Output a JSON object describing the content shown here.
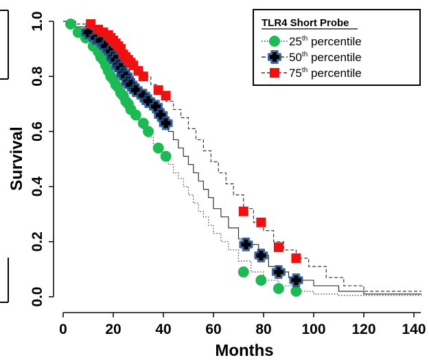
{
  "chart_data": {
    "type": "line",
    "title": "",
    "xlabel": "Months",
    "ylabel": "Survival",
    "xlim": [
      0,
      145
    ],
    "ylim": [
      0,
      1.0
    ],
    "x_ticks": [
      "0",
      "20",
      "40",
      "60",
      "80",
      "100",
      "120",
      "140"
    ],
    "y_ticks": [
      "0.0",
      "0.2",
      "0.4",
      "0.6",
      "0.8",
      "1.0"
    ],
    "grid": false,
    "legend": {
      "title": "TLR4 Short Probe",
      "placement": "top-right",
      "entries": [
        {
          "prefix": "25",
          "sup": "th",
          "suffix": " percentile",
          "color": "#1db954",
          "marker": "circle",
          "line": "dotted"
        },
        {
          "prefix": "50",
          "sup": "th",
          "suffix": " percentile",
          "color": "#000000",
          "marker": "cross",
          "line": "solid"
        },
        {
          "prefix": "75",
          "sup": "th",
          "suffix": " percentile",
          "color": "#ee1111",
          "marker": "square",
          "line": "dashed"
        }
      ]
    },
    "series": [
      {
        "color": "#1db954",
        "marker": "circle",
        "line": "dotted",
        "x": [
          0,
          3,
          5,
          7,
          8,
          9,
          11,
          13,
          14,
          15,
          16,
          17,
          18,
          19,
          20,
          21,
          22,
          23,
          24,
          25,
          26,
          27,
          28,
          30,
          32,
          34,
          36,
          38,
          40,
          42,
          44,
          46,
          48,
          50,
          52,
          54,
          56,
          58,
          60,
          63,
          66,
          70,
          75,
          80,
          86,
          93,
          100,
          110,
          120,
          130,
          143
        ],
        "y": [
          1.0,
          0.99,
          0.97,
          0.95,
          0.94,
          0.93,
          0.91,
          0.89,
          0.88,
          0.86,
          0.85,
          0.83,
          0.81,
          0.8,
          0.78,
          0.77,
          0.75,
          0.74,
          0.72,
          0.71,
          0.69,
          0.68,
          0.66,
          0.63,
          0.61,
          0.58,
          0.55,
          0.53,
          0.51,
          0.48,
          0.45,
          0.43,
          0.4,
          0.37,
          0.34,
          0.31,
          0.29,
          0.26,
          0.23,
          0.2,
          0.17,
          0.13,
          0.09,
          0.06,
          0.04,
          0.02,
          0.01,
          0.005,
          0.005,
          0.005,
          0.005
        ],
        "markers_x": [
          3,
          6,
          9,
          12,
          14,
          15,
          16,
          17,
          18,
          19,
          20,
          21,
          22,
          23,
          24,
          25,
          26,
          27,
          29,
          32,
          34,
          38,
          41,
          72,
          79,
          86,
          93
        ],
        "markers_y": [
          0.99,
          0.96,
          0.94,
          0.91,
          0.89,
          0.87,
          0.86,
          0.84,
          0.82,
          0.8,
          0.79,
          0.77,
          0.76,
          0.74,
          0.73,
          0.71,
          0.7,
          0.68,
          0.66,
          0.63,
          0.6,
          0.54,
          0.51,
          0.09,
          0.06,
          0.03,
          0.02
        ]
      },
      {
        "color": "#000000",
        "marker": "cross",
        "line": "solid",
        "x": [
          0,
          4,
          8,
          10,
          12,
          14,
          16,
          18,
          20,
          22,
          24,
          26,
          28,
          30,
          32,
          34,
          36,
          38,
          40,
          42,
          44,
          46,
          48,
          50,
          52,
          54,
          56,
          58,
          60,
          63,
          66,
          70,
          73,
          78,
          82,
          86,
          90,
          95,
          100,
          110,
          120,
          130,
          143
        ],
        "y": [
          1.0,
          0.98,
          0.97,
          0.96,
          0.94,
          0.92,
          0.9,
          0.88,
          0.86,
          0.84,
          0.82,
          0.8,
          0.77,
          0.75,
          0.73,
          0.71,
          0.68,
          0.66,
          0.63,
          0.6,
          0.57,
          0.54,
          0.51,
          0.48,
          0.45,
          0.42,
          0.39,
          0.36,
          0.32,
          0.29,
          0.25,
          0.21,
          0.19,
          0.15,
          0.11,
          0.09,
          0.07,
          0.06,
          0.04,
          0.02,
          0.01,
          0.01,
          0.01
        ],
        "markers_x": [
          10,
          13,
          15,
          17,
          19,
          20,
          21,
          22,
          23,
          24,
          25,
          26,
          27,
          29,
          32,
          34,
          37,
          39,
          41,
          73,
          79,
          86,
          93
        ],
        "markers_y": [
          0.96,
          0.94,
          0.93,
          0.91,
          0.89,
          0.87,
          0.86,
          0.84,
          0.83,
          0.81,
          0.8,
          0.78,
          0.77,
          0.75,
          0.73,
          0.71,
          0.69,
          0.66,
          0.63,
          0.19,
          0.15,
          0.09,
          0.06
        ]
      },
      {
        "color": "#ee1111",
        "marker": "square",
        "line": "dashed",
        "x": [
          0,
          5,
          10,
          12,
          14,
          16,
          18,
          20,
          22,
          24,
          26,
          28,
          30,
          32,
          35,
          38,
          41,
          44,
          47,
          50,
          53,
          56,
          59,
          62,
          65,
          68,
          72,
          76,
          80,
          84,
          88,
          93,
          98,
          105,
          112,
          120,
          130,
          143
        ],
        "y": [
          1.0,
          0.99,
          0.98,
          0.97,
          0.96,
          0.94,
          0.93,
          0.91,
          0.89,
          0.87,
          0.86,
          0.84,
          0.82,
          0.8,
          0.77,
          0.74,
          0.71,
          0.68,
          0.65,
          0.61,
          0.57,
          0.53,
          0.49,
          0.45,
          0.41,
          0.37,
          0.32,
          0.27,
          0.24,
          0.2,
          0.17,
          0.14,
          0.11,
          0.07,
          0.04,
          0.02,
          0.02,
          0.02
        ],
        "markers_x": [
          11,
          14,
          16,
          18,
          19,
          20,
          21,
          22,
          23,
          24,
          25,
          26,
          27,
          28,
          30,
          32,
          38,
          41,
          72,
          79,
          86,
          93
        ],
        "markers_y": [
          0.99,
          0.97,
          0.96,
          0.95,
          0.94,
          0.93,
          0.92,
          0.91,
          0.9,
          0.88,
          0.87,
          0.86,
          0.85,
          0.84,
          0.82,
          0.8,
          0.75,
          0.73,
          0.31,
          0.27,
          0.18,
          0.14
        ]
      }
    ]
  }
}
